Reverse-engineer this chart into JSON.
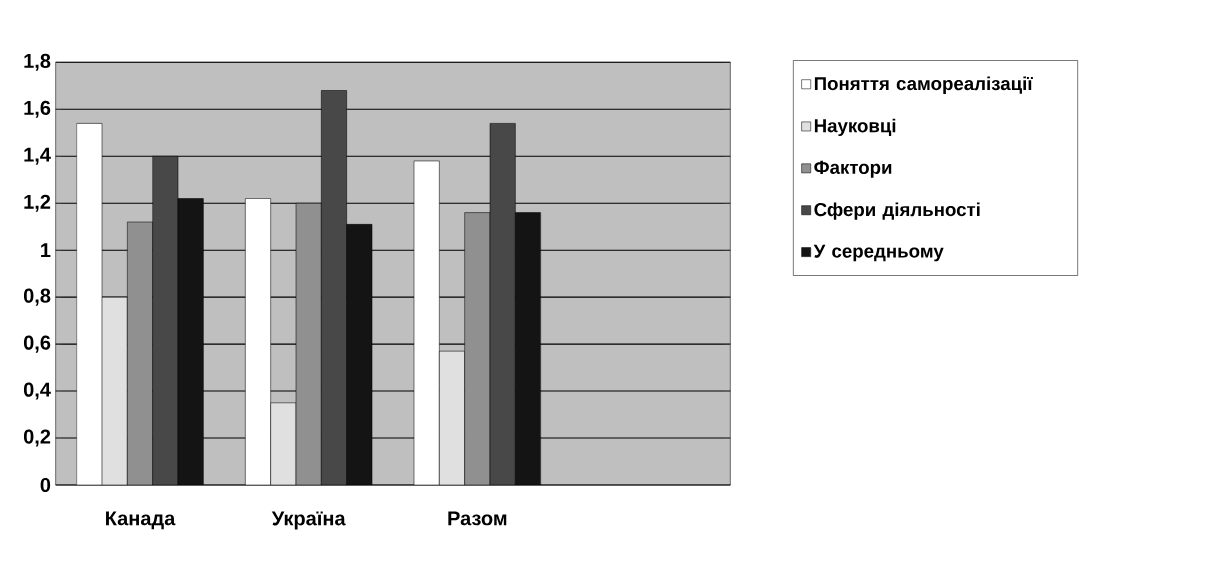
{
  "chart_data": {
    "type": "bar",
    "categories": [
      "Канада",
      "Україна",
      "Разом",
      null
    ],
    "series": [
      {
        "name": "Поняття самореалізації",
        "color": "#ffffff",
        "values": [
          1.54,
          1.22,
          1.38,
          null
        ]
      },
      {
        "name": "Науковці",
        "color": "#e0e0e0",
        "values": [
          0.8,
          0.35,
          0.57,
          null
        ]
      },
      {
        "name": "Фактори",
        "color": "#909090",
        "values": [
          1.12,
          1.2,
          1.16,
          null
        ]
      },
      {
        "name": "Сфери діяльності",
        "color": "#484848",
        "values": [
          1.4,
          1.68,
          1.54,
          null
        ]
      },
      {
        "name": "У середньому",
        "color": "#141414",
        "values": [
          1.22,
          1.11,
          1.16,
          null
        ]
      }
    ],
    "ylim": [
      0,
      1.8
    ],
    "yticks": [
      0,
      {
        "value": 0.2,
        "label": "0,2"
      },
      {
        "value": 0.4,
        "label": "0,4"
      },
      {
        "value": 0.6,
        "label": "0,6"
      },
      {
        "value": 0.8,
        "label": "0,8"
      },
      1,
      {
        "value": 1.2,
        "label": "1,2"
      },
      {
        "value": 1.4,
        "label": "1,4"
      },
      {
        "value": 1.6,
        "label": "1,6"
      },
      {
        "value": 1.8,
        "label": "1,8"
      }
    ],
    "grid": "y",
    "legend": "right"
  }
}
